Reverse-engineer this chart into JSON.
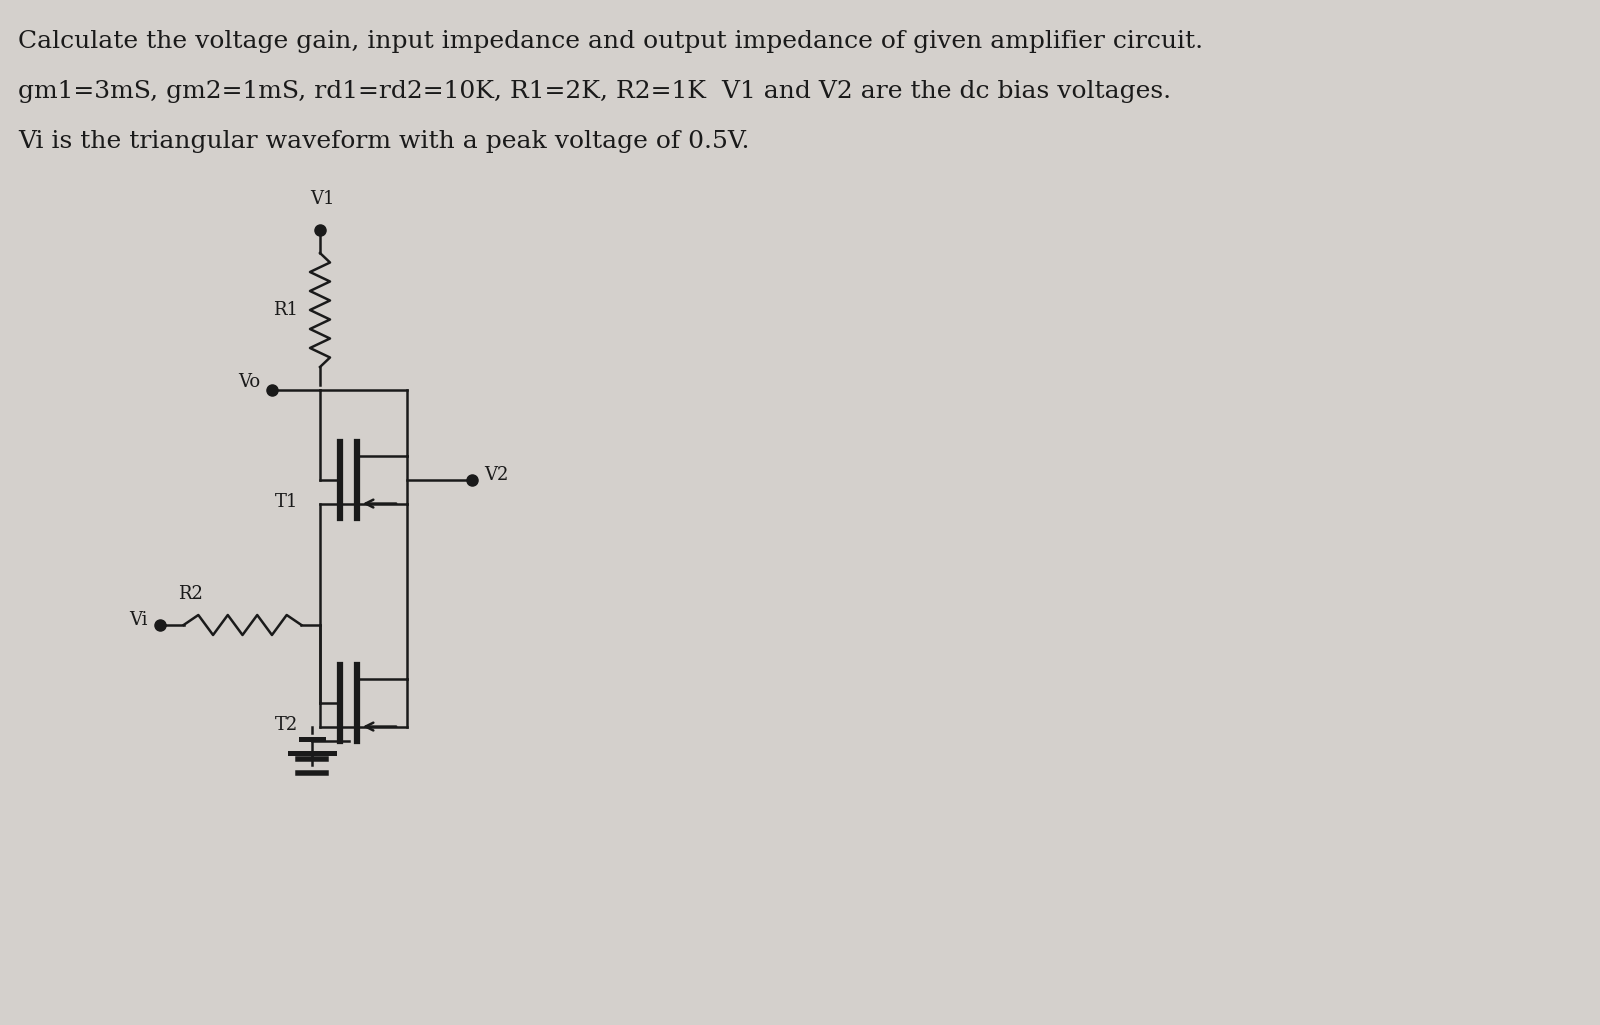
{
  "bg_color": "#d4d0cc",
  "line_color": "#1a1a1a",
  "text_color": "#1a1a1a",
  "title_line1": "Calculate the voltage gain, input impedance and output impedance of given amplifier circuit.",
  "title_line2": "gm1=3mS, gm2=1mS, rd1=rd2=10K, R1=2K, R2=1K  V1 and V2 are the dc bias voltages.",
  "title_line3": "Vi is the triangular waveform with a peak voltage of 0.5V.",
  "title_fs": 18,
  "circuit_fs": 13,
  "lw": 1.8
}
